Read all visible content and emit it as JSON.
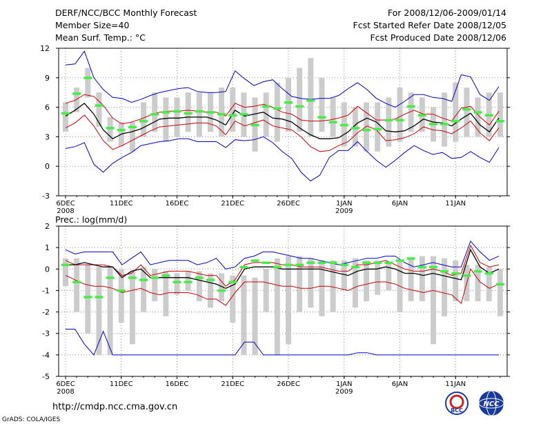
{
  "header": {
    "title": "DERF/NCC/BCC Monthly Forecast",
    "member": "Member Size=40",
    "variable": "Mean Surf. Temp.: °C",
    "period": "For 2008/12/06-2009/01/14",
    "started": "Fcst Started Refer Date 2008/12/05",
    "produced": "Fcst Produced Date 2008/12/06"
  },
  "footer": {
    "url": "http://cmdp.ncc.cma.gov.cn",
    "credit": "GrADS: COLA/IGES",
    "logo_bcc": "BCC",
    "logo_ncc": "NCC"
  },
  "colors": {
    "blue": "#0000cc",
    "red": "#cc0000",
    "mean": "#000000",
    "box": "#cccccc",
    "green": "#44ee44",
    "whisker": "#aaaaaa"
  },
  "chart_data": [
    {
      "type": "line",
      "title": "Mean Surf. Temp.: °C",
      "ylabel": "°C",
      "ylim": [
        -3,
        12
      ],
      "yticks": [
        -3,
        0,
        3,
        6,
        9,
        12
      ],
      "xtick_labels": [
        "6DEC",
        "11DEC",
        "16DEC",
        "21DEC",
        "26DEC",
        "1JAN",
        "6JAN",
        "11JAN"
      ],
      "xtick_years": [
        "2008",
        "",
        "",
        "",
        "",
        "2009",
        "",
        ""
      ],
      "days": 40,
      "series": [
        {
          "name": "max",
          "color": "blue",
          "values": [
            10.3,
            10.4,
            11.7,
            9.0,
            7.8,
            7.0,
            6.9,
            6.5,
            6.8,
            7.2,
            7.5,
            7.7,
            7.9,
            8.0,
            7.6,
            7.5,
            7.5,
            7.6,
            9.7,
            8.9,
            8.2,
            8.6,
            8.8,
            7.9,
            7.1,
            6.9,
            6.8,
            6.9,
            6.9,
            7.2,
            7.9,
            8.5,
            7.8,
            6.9,
            6.4,
            6.0,
            6.6,
            7.3,
            7.3,
            7.0,
            6.9,
            6.6,
            9.3,
            9.1,
            7.3,
            6.7,
            8.1
          ]
        },
        {
          "name": "upper",
          "color": "red",
          "values": [
            6.4,
            6.7,
            7.3,
            7.1,
            6.2,
            4.9,
            4.3,
            4.5,
            4.8,
            5.2,
            5.5,
            5.6,
            5.6,
            5.7,
            5.6,
            5.5,
            5.5,
            5.1,
            6.4,
            6.0,
            6.1,
            6.3,
            6.0,
            5.5,
            5.3,
            4.7,
            4.6,
            4.6,
            4.7,
            4.9,
            5.2,
            6.1,
            5.4,
            4.7,
            4.7,
            4.8,
            5.3,
            5.7,
            5.3,
            5.3,
            4.9,
            4.6,
            5.9,
            6.1,
            5.0,
            4.2,
            5.6
          ]
        },
        {
          "name": "mean",
          "color": "mean",
          "values": [
            5.1,
            5.7,
            6.4,
            5.3,
            3.7,
            2.8,
            3.3,
            3.5,
            3.8,
            4.3,
            4.8,
            4.9,
            4.9,
            5.0,
            5.0,
            5.0,
            4.7,
            4.2,
            5.7,
            5.1,
            5.3,
            5.5,
            4.9,
            4.8,
            4.5,
            3.8,
            3.2,
            2.8,
            2.8,
            2.9,
            3.5,
            4.4,
            4.9,
            4.5,
            3.6,
            3.5,
            3.6,
            4.1,
            4.8,
            4.5,
            4.4,
            4.1,
            4.8,
            5.4,
            4.2,
            3.5,
            4.9
          ]
        },
        {
          "name": "lower",
          "color": "red",
          "values": [
            3.9,
            4.4,
            5.2,
            4.1,
            2.6,
            1.7,
            2.1,
            2.6,
            3.1,
            3.6,
            4.0,
            4.1,
            4.2,
            4.3,
            4.4,
            4.4,
            4.1,
            3.2,
            4.6,
            4.1,
            4.4,
            4.7,
            4.1,
            3.9,
            3.7,
            3.0,
            2.0,
            1.5,
            1.6,
            2.1,
            2.5,
            3.4,
            4.1,
            3.7,
            2.6,
            2.7,
            2.9,
            3.3,
            4.0,
            3.7,
            3.6,
            3.3,
            3.9,
            4.6,
            3.4,
            2.6,
            3.9
          ]
        },
        {
          "name": "min",
          "color": "blue",
          "values": [
            1.8,
            2.0,
            2.4,
            0.2,
            -0.6,
            0.3,
            0.9,
            1.4,
            2.1,
            2.3,
            2.5,
            2.6,
            2.8,
            2.8,
            2.5,
            2.5,
            2.5,
            1.9,
            2.7,
            2.6,
            2.7,
            3.0,
            2.4,
            1.5,
            0.8,
            -0.6,
            -1.5,
            -0.9,
            0.9,
            1.6,
            1.6,
            2.5,
            1.5,
            0.6,
            -0.1,
            0.6,
            1.4,
            2.1,
            1.6,
            1.2,
            1.4,
            0.8,
            0.9,
            1.5,
            0.9,
            0.4,
            1.9
          ]
        }
      ],
      "box_days": [
        0,
        1,
        2,
        3,
        4,
        5,
        6,
        7,
        8,
        9,
        10,
        11,
        12,
        13,
        14,
        15,
        16,
        17,
        18,
        19,
        20,
        21,
        22,
        23,
        24,
        25,
        26,
        27,
        28,
        29,
        30,
        31,
        32,
        33,
        34,
        35,
        36,
        37,
        38,
        39
      ],
      "box_low": [
        3.5,
        5.5,
        7.0,
        4.0,
        2.5,
        2.0,
        1.5,
        3.0,
        3.5,
        2.5,
        3.0,
        3.5,
        3.0,
        3.5,
        3.0,
        3.5,
        3.0,
        1.5,
        3.0,
        2.5,
        3.5,
        3.5,
        3.0,
        3.5,
        3.0,
        2.0,
        2.0,
        1.5,
        1.5,
        2.0,
        2.5,
        3.5,
        3.5,
        2.5,
        2.0,
        2.5,
        3.0,
        3.0,
        3.0,
        3.0
      ],
      "box_high": [
        6.5,
        8.0,
        10.0,
        7.5,
        5.0,
        4.5,
        4.5,
        6.5,
        7.5,
        7.0,
        7.0,
        7.5,
        7.5,
        7.5,
        8.0,
        8.0,
        7.5,
        7.0,
        7.5,
        8.5,
        9.0,
        10.0,
        11.0,
        9.0,
        7.0,
        6.5,
        6.0,
        6.5,
        6.5,
        7.0,
        8.0,
        7.5,
        7.0,
        6.0,
        7.5,
        8.5,
        8.0,
        7.0,
        7.5,
        7.5
      ],
      "median_marks": [
        5.4,
        7.4,
        9.0,
        6.2,
        3.9,
        3.7,
        4.0,
        4.6,
        5.3,
        5.5,
        5.6,
        5.4,
        5.6,
        5.5,
        5.3,
        5.2,
        5.3,
        4.2,
        6.1,
        5.9,
        6.5,
        6.1,
        6.7,
        5.0,
        4.5,
        4.2,
        3.9,
        3.7,
        3.8,
        4.7,
        4.7,
        6.1,
        5.2,
        4.3,
        4.3,
        4.6,
        5.8,
        5.5,
        5.2,
        4.6
      ]
    },
    {
      "type": "line",
      "title": "Prec.: log(mm/d)",
      "ylabel": "log(mm/d)",
      "ylim": [
        -5,
        2
      ],
      "yticks": [
        -5,
        -4,
        -3,
        -2,
        -1,
        0,
        1,
        2
      ],
      "xtick_labels": [
        "6DEC",
        "11DEC",
        "16DEC",
        "21DEC",
        "26DEC",
        "1JAN",
        "6JAN",
        "11JAN"
      ],
      "xtick_years": [
        "2008",
        "",
        "",
        "",
        "",
        "2009",
        "",
        ""
      ],
      "days": 40,
      "series": [
        {
          "name": "max",
          "color": "blue",
          "values": [
            0.9,
            0.7,
            0.8,
            0.8,
            0.8,
            0.8,
            0.2,
            0.5,
            0.8,
            0.2,
            0.3,
            0.4,
            0.4,
            0.4,
            0.2,
            0.3,
            0.5,
            0.0,
            0.1,
            0.5,
            0.6,
            0.8,
            0.8,
            0.7,
            0.6,
            0.5,
            0.5,
            0.4,
            0.3,
            0.2,
            0.3,
            0.4,
            0.5,
            0.5,
            0.6,
            0.6,
            0.3,
            0.1,
            0.2,
            0.3,
            0.2,
            0.1,
            0.1,
            1.3,
            0.8,
            0.4,
            0.6
          ]
        },
        {
          "name": "upper",
          "color": "red",
          "values": [
            0.4,
            0.2,
            0.2,
            0.2,
            0.2,
            0.1,
            -0.3,
            -0.2,
            0.2,
            -0.3,
            -0.2,
            -0.1,
            -0.1,
            -0.1,
            -0.2,
            -0.3,
            -0.3,
            -0.8,
            -0.5,
            0.2,
            0.3,
            0.3,
            0.3,
            0.2,
            0.2,
            0.1,
            0.1,
            0.1,
            0.0,
            -0.1,
            -0.1,
            0.2,
            0.2,
            0.3,
            0.4,
            0.2,
            0.0,
            -0.1,
            -0.1,
            0.0,
            -0.1,
            -0.3,
            -0.2,
            1.1,
            0.3,
            0.1,
            0.2
          ]
        },
        {
          "name": "mean",
          "color": "mean",
          "values": [
            0.2,
            0.2,
            0.3,
            0.2,
            0.1,
            0.1,
            -0.4,
            -0.1,
            0.0,
            -0.4,
            -0.4,
            -0.4,
            -0.4,
            -0.4,
            -0.5,
            -0.6,
            -0.7,
            -0.9,
            -0.7,
            0.0,
            0.1,
            0.1,
            0.1,
            0.0,
            0.0,
            0.0,
            0.0,
            0.0,
            -0.1,
            -0.2,
            -0.3,
            -0.1,
            0.0,
            0.0,
            0.1,
            0.0,
            -0.2,
            -0.2,
            -0.3,
            -0.2,
            -0.3,
            -0.4,
            -0.5,
            0.9,
            0.1,
            -0.2,
            0.0
          ]
        },
        {
          "name": "lower",
          "color": "red",
          "values": [
            -0.3,
            -0.5,
            -0.7,
            -0.8,
            -0.8,
            -0.9,
            -1.1,
            -1.0,
            -0.9,
            -1.1,
            -1.2,
            -1.1,
            -1.1,
            -1.1,
            -1.2,
            -1.4,
            -1.4,
            -1.7,
            -1.1,
            -0.6,
            -0.6,
            -0.6,
            -0.7,
            -0.8,
            -0.8,
            -0.9,
            -0.9,
            -0.8,
            -0.8,
            -0.9,
            -1.0,
            -0.8,
            -0.7,
            -0.6,
            -0.6,
            -0.7,
            -0.9,
            -1.0,
            -1.1,
            -1.0,
            -1.1,
            -1.2,
            -1.6,
            0.0,
            -0.6,
            -0.9,
            -0.7
          ]
        },
        {
          "name": "min",
          "color": "blue",
          "values": [
            -2.8,
            -2.8,
            -3.5,
            -4.0,
            -2.9,
            -4.0,
            -4.0,
            -4.0,
            -4.0,
            -4.0,
            -4.0,
            -4.0,
            -4.0,
            -4.0,
            -4.0,
            -4.0,
            -4.0,
            -4.0,
            -4.0,
            -3.4,
            -3.4,
            -4.0,
            -4.0,
            -4.0,
            -4.0,
            -4.0,
            -4.0,
            -4.0,
            -4.0,
            -4.0,
            -4.0,
            -3.9,
            -3.9,
            -4.0,
            -4.0,
            -4.0,
            -4.0,
            -4.0,
            -4.0,
            -4.0,
            -4.0,
            -4.0,
            -4.0,
            -4.0,
            -4.0,
            -4.0,
            -4.0
          ]
        }
      ],
      "box_days": [
        0,
        1,
        2,
        3,
        4,
        5,
        6,
        7,
        8,
        9,
        10,
        11,
        12,
        13,
        14,
        15,
        16,
        17,
        18,
        19,
        20,
        21,
        22,
        23,
        24,
        25,
        26,
        27,
        28,
        29,
        30,
        31,
        32,
        33,
        34,
        35,
        36,
        37,
        38,
        39
      ],
      "box_low": [
        -0.8,
        -2.0,
        -3.0,
        -4.0,
        -4.0,
        -2.5,
        -3.5,
        -2.0,
        -1.5,
        -2.2,
        -1.2,
        -1.0,
        -1.5,
        -1.8,
        -1.5,
        -2.5,
        -4.0,
        -4.0,
        -2.0,
        -4.0,
        -3.5,
        -2.0,
        -1.8,
        -2.2,
        -2.0,
        -1.0,
        -1.8,
        -1.5,
        -1.2,
        -1.0,
        -2.0,
        -1.5,
        -1.5,
        -3.5,
        -2.2,
        -1.5,
        -1.5,
        -1.5,
        -1.5,
        -2.2
      ],
      "box_high": [
        0.5,
        0.5,
        0.2,
        0.1,
        0.1,
        0.0,
        -0.1,
        0.1,
        0.0,
        -0.1,
        -0.2,
        -0.1,
        -0.1,
        -0.2,
        -0.2,
        -0.3,
        -0.3,
        -0.4,
        0.0,
        0.5,
        0.6,
        0.6,
        0.5,
        0.4,
        0.4,
        0.4,
        0.5,
        0.4,
        0.4,
        0.3,
        0.4,
        0.5,
        0.6,
        0.6,
        0.5,
        0.4,
        0.2,
        0.2,
        0.1,
        0.0
      ],
      "median_marks": [
        0.2,
        -0.6,
        -1.3,
        -1.3,
        -0.4,
        -1.0,
        -0.4,
        -0.5,
        -0.4,
        -0.3,
        -0.6,
        -0.6,
        -0.4,
        -0.5,
        -1.0,
        -0.6,
        0.1,
        0.4,
        0.3,
        0.1,
        0.2,
        0.2,
        0.3,
        0.3,
        0.3,
        0.2,
        0.1,
        0.3,
        0.3,
        0.3,
        0.4,
        0.5,
        0.1,
        0.1,
        -0.1,
        -0.2,
        -0.3,
        -0.1,
        -0.2,
        -0.7
      ]
    }
  ]
}
